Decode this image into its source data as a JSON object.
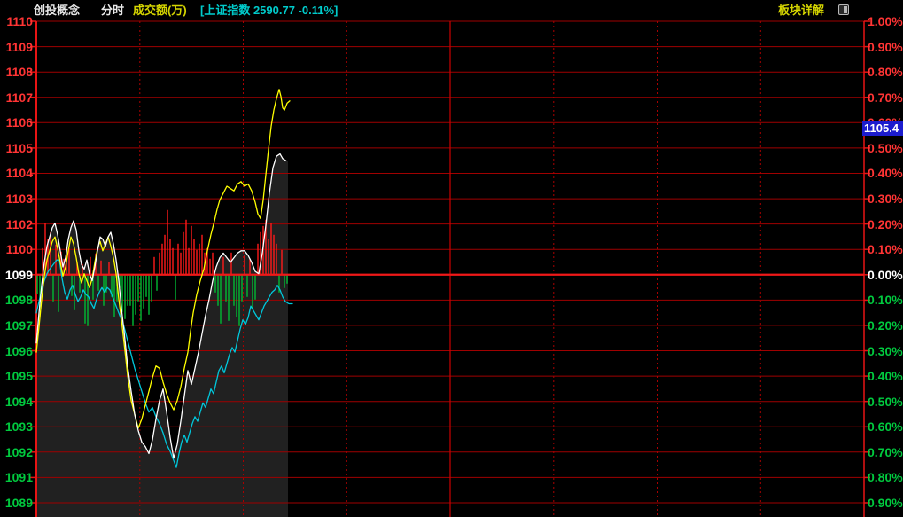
{
  "header": {
    "title": "创投概念",
    "mode_label": "分时",
    "volume_label": "成交额(万)",
    "index_ticker": "[上证指数 2590.77 -0.11%]",
    "detail_link": "板块详解"
  },
  "badge": {
    "value": "1105.4"
  },
  "colors": {
    "up_label": "#ff3434",
    "down_label": "#00c93e",
    "zero_label": "#ffffff",
    "grid": "#a00000",
    "grid_dotted": "#aa0000",
    "grid_midday": "#cc0000",
    "zero_line": "#f01818",
    "border": "#e81414",
    "bar_up": "#ff1a1a",
    "bar_down": "#00bb33",
    "line_white": "#ffffff",
    "line_yellow": "#ffff00",
    "line_cyan": "#00c8dc",
    "fill_under_price": "#212121",
    "header_yellow": "#d6d600",
    "header_cyan": "#00cbcb",
    "header_white": "#e8e8e8",
    "badge_bg": "#1c1cce"
  },
  "axes": {
    "left_labels": [
      "1110",
      "1109",
      "1108",
      "1107",
      "1106",
      "1105",
      "1104",
      "1103",
      "1102",
      "1100",
      "1099",
      "1098",
      "1097",
      "1096",
      "1095",
      "1094",
      "1093",
      "1092",
      "1091",
      "1089"
    ],
    "right_labels": [
      "1.00%",
      "0.90%",
      "0.80%",
      "0.70%",
      "0.60%",
      "0.50%",
      "0.40%",
      "0.30%",
      "0.20%",
      "0.10%",
      "0.00%",
      "0.10%",
      "0.20%",
      "0.30%",
      "0.40%",
      "0.50%",
      "0.60%",
      "0.70%",
      "0.80%",
      "0.90%"
    ],
    "percent_top": 1.0,
    "percent_bottom": -0.9,
    "base_value": 1099.26
  },
  "chart_data": {
    "type": "line",
    "title": "创投概念 分时",
    "x_unit": "px (minutes of trading session, 9:30-15:00; data ends ~10:45)",
    "legend_position": "none",
    "grid": true,
    "series": [
      {
        "name": "sector-price-white",
        "points": [
          [
            41,
            1096.3
          ],
          [
            44,
            1097.6
          ],
          [
            47,
            1098.8
          ],
          [
            50,
            1099.8
          ],
          [
            53,
            1100.5
          ],
          [
            56,
            1100.9
          ],
          [
            59,
            1101.3
          ],
          [
            62,
            1101.5
          ],
          [
            65,
            1101.0
          ],
          [
            68,
            1100.3
          ],
          [
            71,
            1099.6
          ],
          [
            74,
            1100.0
          ],
          [
            77,
            1100.8
          ],
          [
            80,
            1101.3
          ],
          [
            83,
            1101.6
          ],
          [
            86,
            1101.2
          ],
          [
            89,
            1100.3
          ],
          [
            92,
            1099.7
          ],
          [
            95,
            1099.5
          ],
          [
            98,
            1099.9
          ],
          [
            101,
            1099.3
          ],
          [
            104,
            1099.0
          ],
          [
            107,
            1099.6
          ],
          [
            110,
            1100.3
          ],
          [
            113,
            1100.9
          ],
          [
            116,
            1100.8
          ],
          [
            119,
            1100.5
          ],
          [
            122,
            1100.9
          ],
          [
            125,
            1101.1
          ],
          [
            128,
            1100.6
          ],
          [
            131,
            1099.9
          ],
          [
            134,
            1099.0
          ],
          [
            137,
            1097.8
          ],
          [
            140,
            1096.8
          ],
          [
            144,
            1095.3
          ],
          [
            148,
            1094.2
          ],
          [
            152,
            1093.2
          ],
          [
            156,
            1092.5
          ],
          [
            160,
            1092.0
          ],
          [
            164,
            1091.8
          ],
          [
            168,
            1091.5
          ],
          [
            172,
            1092.1
          ],
          [
            176,
            1093.0
          ],
          [
            180,
            1093.8
          ],
          [
            184,
            1094.3
          ],
          [
            188,
            1093.3
          ],
          [
            192,
            1092.2
          ],
          [
            196,
            1091.3
          ],
          [
            200,
            1091.9
          ],
          [
            204,
            1092.9
          ],
          [
            208,
            1094.0
          ],
          [
            212,
            1095.1
          ],
          [
            216,
            1094.5
          ],
          [
            220,
            1095.2
          ],
          [
            224,
            1095.9
          ],
          [
            228,
            1096.7
          ],
          [
            232,
            1097.5
          ],
          [
            236,
            1098.2
          ],
          [
            240,
            1099.0
          ],
          [
            244,
            1099.6
          ],
          [
            248,
            1100.0
          ],
          [
            252,
            1100.2
          ],
          [
            256,
            1100.0
          ],
          [
            260,
            1099.8
          ],
          [
            264,
            1100.0
          ],
          [
            268,
            1100.2
          ],
          [
            272,
            1100.3
          ],
          [
            276,
            1100.3
          ],
          [
            280,
            1100.1
          ],
          [
            284,
            1099.8
          ],
          [
            288,
            1099.4
          ],
          [
            292,
            1099.3
          ],
          [
            296,
            1100.2
          ],
          [
            300,
            1101.4
          ],
          [
            304,
            1102.8
          ],
          [
            308,
            1103.9
          ],
          [
            312,
            1104.4
          ],
          [
            316,
            1104.5
          ],
          [
            319,
            1104.3
          ],
          [
            323,
            1104.2
          ]
        ]
      },
      {
        "name": "sector-avg-yellow",
        "points": [
          [
            41,
            1095.9
          ],
          [
            44,
            1097.0
          ],
          [
            47,
            1098.2
          ],
          [
            50,
            1099.2
          ],
          [
            53,
            1099.9
          ],
          [
            56,
            1100.3
          ],
          [
            59,
            1100.7
          ],
          [
            62,
            1100.9
          ],
          [
            65,
            1100.4
          ],
          [
            68,
            1099.8
          ],
          [
            71,
            1099.2
          ],
          [
            74,
            1099.6
          ],
          [
            77,
            1100.3
          ],
          [
            80,
            1100.9
          ],
          [
            83,
            1100.6
          ],
          [
            86,
            1100.0
          ],
          [
            89,
            1099.3
          ],
          [
            92,
            1098.9
          ],
          [
            95,
            1099.3
          ],
          [
            98,
            1099.0
          ],
          [
            101,
            1098.7
          ],
          [
            104,
            1099.1
          ],
          [
            107,
            1099.8
          ],
          [
            110,
            1100.4
          ],
          [
            113,
            1100.7
          ],
          [
            116,
            1100.3
          ],
          [
            119,
            1100.6
          ],
          [
            122,
            1100.9
          ],
          [
            125,
            1100.5
          ],
          [
            128,
            1100.0
          ],
          [
            131,
            1099.3
          ],
          [
            134,
            1098.2
          ],
          [
            137,
            1097.3
          ],
          [
            140,
            1096.3
          ],
          [
            144,
            1094.9
          ],
          [
            148,
            1093.8
          ],
          [
            152,
            1093.2
          ],
          [
            156,
            1092.6
          ],
          [
            160,
            1093.0
          ],
          [
            164,
            1093.6
          ],
          [
            168,
            1094.2
          ],
          [
            172,
            1094.8
          ],
          [
            176,
            1095.3
          ],
          [
            180,
            1095.2
          ],
          [
            184,
            1094.6
          ],
          [
            188,
            1094.1
          ],
          [
            192,
            1093.7
          ],
          [
            196,
            1093.4
          ],
          [
            200,
            1093.8
          ],
          [
            204,
            1094.4
          ],
          [
            208,
            1095.2
          ],
          [
            212,
            1095.9
          ],
          [
            215,
            1096.8
          ],
          [
            218,
            1097.6
          ],
          [
            222,
            1098.4
          ],
          [
            226,
            1099.0
          ],
          [
            230,
            1099.5
          ],
          [
            234,
            1100.3
          ],
          [
            238,
            1101.0
          ],
          [
            242,
            1101.6
          ],
          [
            245,
            1102.1
          ],
          [
            248,
            1102.5
          ],
          [
            252,
            1102.8
          ],
          [
            256,
            1103.1
          ],
          [
            260,
            1103.0
          ],
          [
            264,
            1102.9
          ],
          [
            268,
            1103.2
          ],
          [
            272,
            1103.3
          ],
          [
            276,
            1103.1
          ],
          [
            280,
            1103.2
          ],
          [
            284,
            1102.9
          ],
          [
            288,
            1102.4
          ],
          [
            291,
            1101.9
          ],
          [
            294,
            1101.7
          ],
          [
            297,
            1102.5
          ],
          [
            300,
            1103.6
          ],
          [
            303,
            1104.7
          ],
          [
            306,
            1105.7
          ],
          [
            309,
            1106.4
          ],
          [
            312,
            1106.9
          ],
          [
            315,
            1107.3
          ],
          [
            317,
            1107.0
          ],
          [
            319,
            1106.5
          ],
          [
            321,
            1106.4
          ],
          [
            324,
            1106.7
          ],
          [
            327,
            1106.8
          ]
        ]
      },
      {
        "name": "sse-index-cyan",
        "points": [
          [
            41,
            1097.6
          ],
          [
            44,
            1098.1
          ],
          [
            47,
            1098.6
          ],
          [
            50,
            1099.0
          ],
          [
            53,
            1099.3
          ],
          [
            56,
            1099.5
          ],
          [
            60,
            1099.7
          ],
          [
            64,
            1099.9
          ],
          [
            67,
            1099.9
          ],
          [
            70,
            1099.1
          ],
          [
            73,
            1098.5
          ],
          [
            76,
            1098.2
          ],
          [
            79,
            1098.6
          ],
          [
            82,
            1098.8
          ],
          [
            85,
            1098.4
          ],
          [
            88,
            1098.1
          ],
          [
            91,
            1098.3
          ],
          [
            94,
            1098.6
          ],
          [
            97,
            1098.4
          ],
          [
            100,
            1098.3
          ],
          [
            103,
            1098.0
          ],
          [
            106,
            1097.8
          ],
          [
            109,
            1098.2
          ],
          [
            112,
            1098.5
          ],
          [
            115,
            1098.7
          ],
          [
            118,
            1098.5
          ],
          [
            121,
            1098.7
          ],
          [
            124,
            1098.6
          ],
          [
            127,
            1098.3
          ],
          [
            130,
            1098.0
          ],
          [
            133,
            1097.7
          ],
          [
            136,
            1097.4
          ],
          [
            140,
            1097.0
          ],
          [
            144,
            1096.4
          ],
          [
            148,
            1095.8
          ],
          [
            152,
            1095.2
          ],
          [
            156,
            1094.7
          ],
          [
            160,
            1094.2
          ],
          [
            164,
            1093.7
          ],
          [
            168,
            1093.3
          ],
          [
            172,
            1093.5
          ],
          [
            176,
            1093.1
          ],
          [
            180,
            1092.8
          ],
          [
            184,
            1092.4
          ],
          [
            188,
            1091.9
          ],
          [
            192,
            1091.6
          ],
          [
            196,
            1091.2
          ],
          [
            199,
            1090.9
          ],
          [
            202,
            1091.5
          ],
          [
            205,
            1092.0
          ],
          [
            208,
            1092.3
          ],
          [
            211,
            1092.0
          ],
          [
            214,
            1092.4
          ],
          [
            217,
            1092.8
          ],
          [
            220,
            1093.1
          ],
          [
            223,
            1092.9
          ],
          [
            226,
            1093.3
          ],
          [
            229,
            1093.7
          ],
          [
            232,
            1093.5
          ],
          [
            235,
            1093.9
          ],
          [
            238,
            1094.3
          ],
          [
            241,
            1094.1
          ],
          [
            244,
            1094.6
          ],
          [
            247,
            1095.1
          ],
          [
            250,
            1095.3
          ],
          [
            253,
            1095.0
          ],
          [
            256,
            1095.4
          ],
          [
            259,
            1095.8
          ],
          [
            262,
            1096.1
          ],
          [
            265,
            1095.9
          ],
          [
            268,
            1096.4
          ],
          [
            271,
            1096.9
          ],
          [
            274,
            1097.3
          ],
          [
            277,
            1097.1
          ],
          [
            280,
            1097.4
          ],
          [
            283,
            1097.9
          ],
          [
            286,
            1097.7
          ],
          [
            289,
            1097.5
          ],
          [
            292,
            1097.3
          ],
          [
            295,
            1097.6
          ],
          [
            298,
            1097.9
          ],
          [
            301,
            1098.1
          ],
          [
            304,
            1098.3
          ],
          [
            307,
            1098.5
          ],
          [
            310,
            1098.6
          ],
          [
            313,
            1098.8
          ],
          [
            316,
            1098.6
          ],
          [
            319,
            1098.3
          ],
          [
            322,
            1098.1
          ],
          [
            326,
            1098.0
          ],
          [
            330,
            1098.0
          ]
        ]
      }
    ],
    "volume": {
      "x_start": 42,
      "x_step": 3,
      "note": "positive = up-minute (red, above zero line), negative = down-minute (green, below); value = bar length px",
      "bars": [
        -22,
        -36,
        30,
        58,
        40,
        48,
        -30,
        34,
        -42,
        26,
        18,
        22,
        30,
        -24,
        -40,
        14,
        -20,
        12,
        -55,
        -58,
        20,
        -28,
        24,
        -18,
        16,
        -35,
        -20,
        14,
        -25,
        -48,
        -30,
        -15,
        -42,
        -50,
        -35,
        -35,
        -58,
        -45,
        -30,
        -52,
        -38,
        -25,
        -45,
        -30,
        20,
        -18,
        25,
        35,
        45,
        73,
        40,
        30,
        -28,
        35,
        25,
        48,
        62,
        30,
        55,
        40,
        28,
        35,
        45,
        25,
        30,
        18,
        25,
        -20,
        -35,
        -55,
        20,
        -30,
        -52,
        25,
        -35,
        -48,
        -58,
        -30,
        22,
        -25,
        18,
        -38,
        -28,
        35,
        48,
        55,
        62,
        40,
        58,
        45,
        35,
        -20,
        28,
        -15,
        -10
      ]
    }
  }
}
